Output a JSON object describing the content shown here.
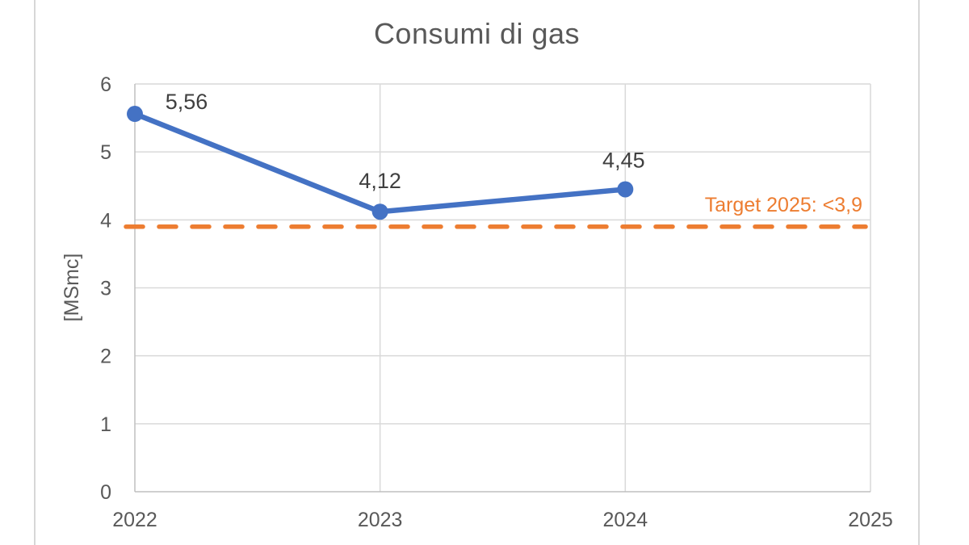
{
  "chart_data": {
    "type": "line",
    "title": "Consumi di gas",
    "xlabel": "",
    "ylabel": "[MSmc]",
    "x": [
      2022,
      2023,
      2024
    ],
    "series": [
      {
        "name": "Consumi di gas",
        "values": [
          5.56,
          4.12,
          4.45
        ],
        "data_labels": [
          "5,56",
          "4,12",
          "4,45"
        ]
      }
    ],
    "target": {
      "value": 3.9,
      "label": "Target 2025: <3,9"
    },
    "xlim": [
      2022,
      2025
    ],
    "ylim": [
      0,
      6
    ],
    "x_ticks": [
      "2022",
      "2023",
      "2024",
      "2025"
    ],
    "y_ticks": [
      "0",
      "1",
      "2",
      "3",
      "4",
      "5",
      "6"
    ],
    "grid": true,
    "legend": false,
    "colors": {
      "series": "#4472C4",
      "target": "#ED7D31",
      "grid": "#D9D9D9",
      "axis": "#BFBFBF",
      "tick_text": "#595959",
      "label_text": "#404040",
      "title_text": "#595959"
    }
  }
}
